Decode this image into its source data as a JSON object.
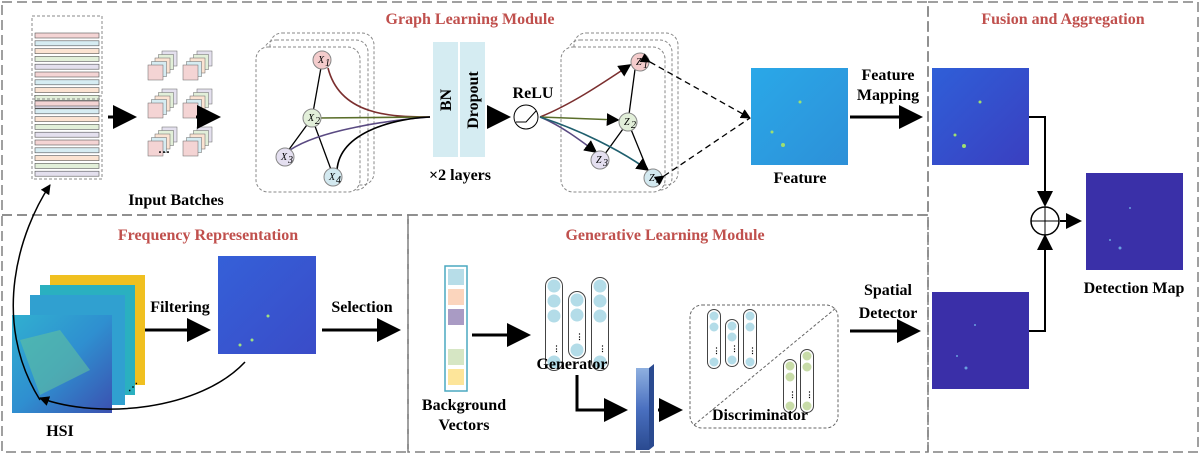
{
  "modules": {
    "graph": "Graph Learning Module",
    "frequency": "Frequency Representation",
    "generative": "Generative Learning Module",
    "fusion": "Fusion and Aggregation"
  },
  "labels": {
    "input_batches": "Input Batches",
    "bn": "BN",
    "dropout": "Dropout",
    "layers": "×2 layers",
    "relu": "ReLU",
    "feature": "Feature",
    "feature_mapping_1": "Feature",
    "feature_mapping_2": "Mapping",
    "filtering": "Filtering",
    "selection": "Selection",
    "hsi": "HSI",
    "background_1": "Background",
    "background_2": "Vectors",
    "generator": "Generator",
    "discriminator": "Discriminator",
    "spatial_1": "Spatial",
    "spatial_2": "Detector",
    "detection_map": "Detection Map"
  },
  "graph_nodes_x": [
    {
      "letter": "X",
      "sub": "1",
      "color": "#f4cccc"
    },
    {
      "letter": "X",
      "sub": "2",
      "color": "#e2efd9"
    },
    {
      "letter": "X",
      "sub": "3",
      "color": "#e4dff0"
    },
    {
      "letter": "X",
      "sub": "4",
      "color": "#d3e9f0"
    }
  ],
  "graph_nodes_z": [
    {
      "letter": "Z",
      "sub": "1",
      "color": "#f4cccc"
    },
    {
      "letter": "Z",
      "sub": "2",
      "color": "#e2efd9"
    },
    {
      "letter": "Z",
      "sub": "3",
      "color": "#e4dff0"
    },
    {
      "letter": "Z",
      "sub": "4",
      "color": "#d3e9f0"
    }
  ],
  "colors": {
    "title": "#c0504d",
    "bn_dropout": "#d5ecf2",
    "edge1": "#7b2f2f",
    "edge2": "#5a6e2a",
    "edge3": "#5a4a82",
    "edge4": "#1f5f6e"
  },
  "band_colors": [
    "#f4d4d4",
    "#d6ecf2",
    "#fbe3d2",
    "#e2efd9",
    "#e4e0ee"
  ],
  "background_vector_colors": [
    "#b7dde8",
    "#fbd5bd",
    "#a99bc4",
    "#ffffff",
    "#d6e6c4",
    "#fde59a"
  ]
}
